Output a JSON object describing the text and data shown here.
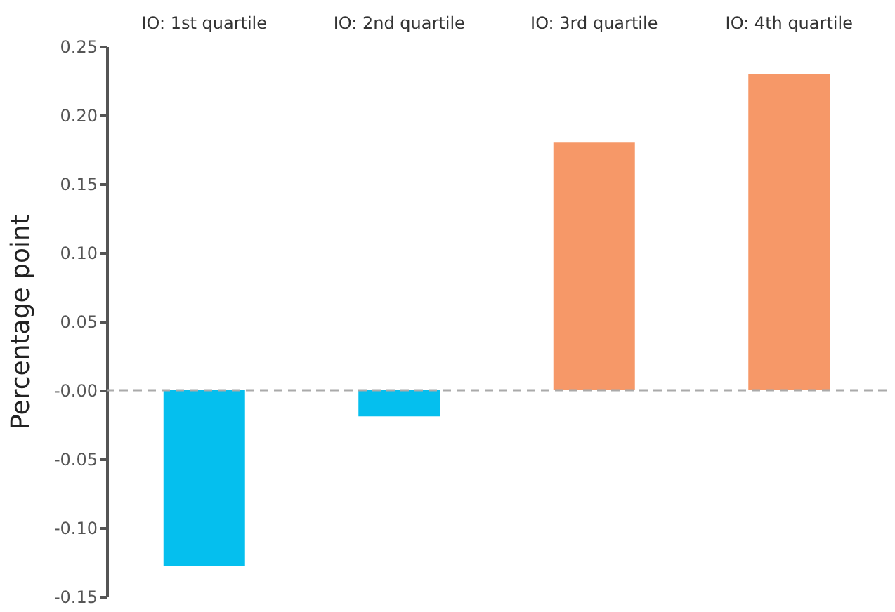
{
  "chart_data": {
    "type": "bar",
    "ylabel": "Percentage point",
    "categories": [
      "IO: 1st quartile",
      "IO: 2nd quartile",
      "IO: 3rd quartile",
      "IO: 4th quartile"
    ],
    "values": [
      -0.128,
      -0.019,
      0.18,
      0.23
    ],
    "colors": [
      "#05bfee",
      "#05bfee",
      "#f69868",
      "#f69868"
    ],
    "ylim": [
      -0.15,
      0.25
    ],
    "yticks": [
      {
        "value": -0.15,
        "label": "-0.15"
      },
      {
        "value": -0.1,
        "label": "-0.10"
      },
      {
        "value": -0.05,
        "label": "-0.05"
      },
      {
        "value": 0,
        "label": "-0.00"
      },
      {
        "value": 0.05,
        "label": "0.05"
      },
      {
        "value": 0.1,
        "label": "0.10"
      },
      {
        "value": 0.15,
        "label": "0.15"
      },
      {
        "value": 0.2,
        "label": "0.20"
      },
      {
        "value": 0.25,
        "label": "0.25"
      }
    ],
    "ref_lines": [
      {
        "axis": "y",
        "value": 0,
        "color": "#aaaaaa",
        "line_style": "dashed"
      }
    ],
    "grid": false
  }
}
